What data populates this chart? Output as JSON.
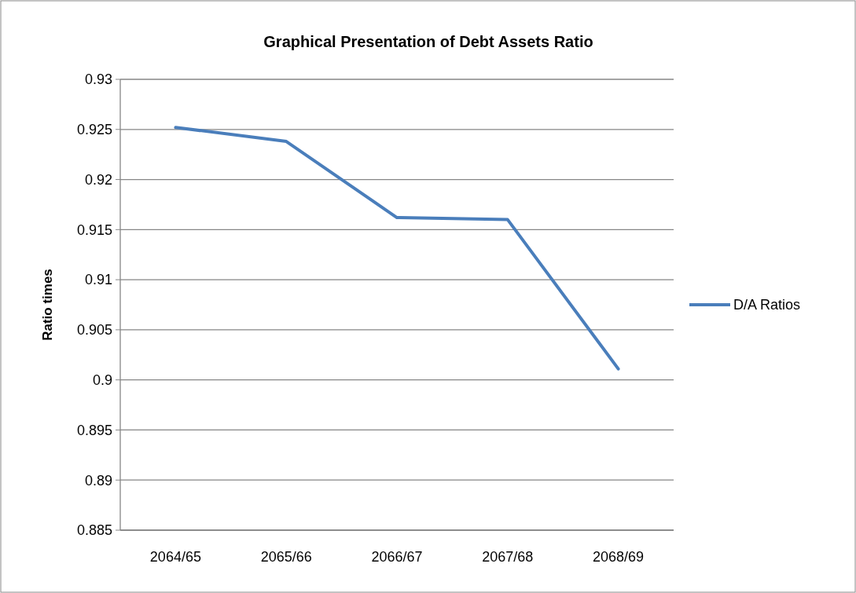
{
  "chart_data": {
    "type": "line",
    "title": "Graphical Presentation of Debt Assets Ratio",
    "ylabel": "Ratio times",
    "categories": [
      "2064/65",
      "2065/66",
      "2066/67",
      "2067/68",
      "2068/69"
    ],
    "series": [
      {
        "name": "D/A Ratios",
        "color": "#4a7ebb",
        "values": [
          0.9252,
          0.9238,
          0.9162,
          0.916,
          0.9011
        ]
      }
    ],
    "ylim": [
      0.885,
      0.93
    ],
    "yticks": [
      0.885,
      0.89,
      0.895,
      0.9,
      0.905,
      0.91,
      0.915,
      0.92,
      0.925,
      0.93
    ],
    "grid": "y",
    "legend": "right",
    "marker": "none",
    "line_style": "solid"
  }
}
